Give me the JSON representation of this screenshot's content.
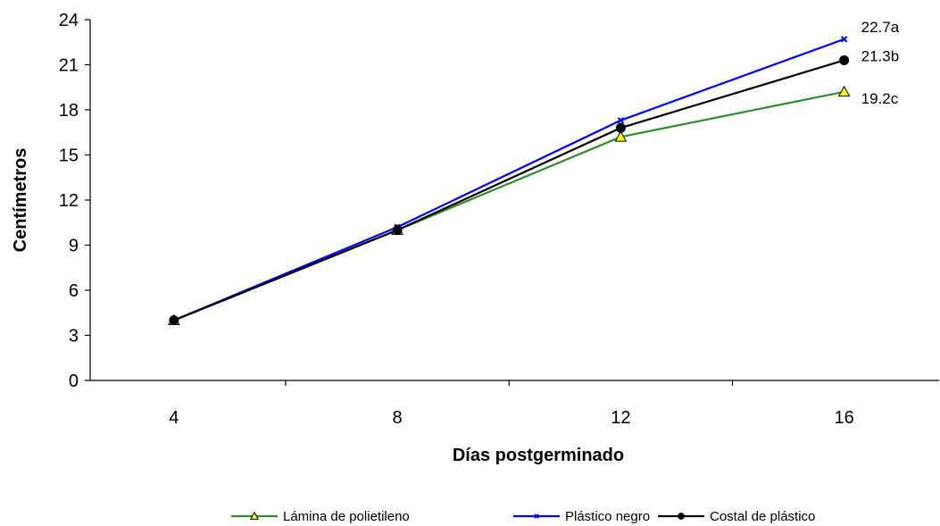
{
  "chart_data": {
    "type": "line",
    "xlabel": "Días postgerminado",
    "ylabel": "Centímetros",
    "x": [
      4,
      8,
      12,
      16
    ],
    "xticks": [
      "4",
      "8",
      "12",
      "16"
    ],
    "ylim": [
      0,
      24
    ],
    "yticks": [
      0,
      3,
      6,
      9,
      12,
      15,
      18,
      21,
      24
    ],
    "grid": false,
    "legend_position": "bottom",
    "series": [
      {
        "name": "Lámina de polietileno",
        "values": [
          4.0,
          10.0,
          16.2,
          19.2
        ],
        "color": "#2e8b2e",
        "marker": "triangle",
        "marker_color": "#ffff00",
        "end_label": "19.2c"
      },
      {
        "name": "Plástico negro",
        "values": [
          4.0,
          10.2,
          17.3,
          22.7
        ],
        "color": "#0000ff",
        "marker": "x",
        "marker_color": "#0000ff",
        "end_label": "22.7a"
      },
      {
        "name": "Costal de plástico",
        "values": [
          4.0,
          10.0,
          16.8,
          21.3
        ],
        "color": "#000000",
        "marker": "circle",
        "marker_color": "#000000",
        "end_label": "21.3b"
      }
    ]
  }
}
